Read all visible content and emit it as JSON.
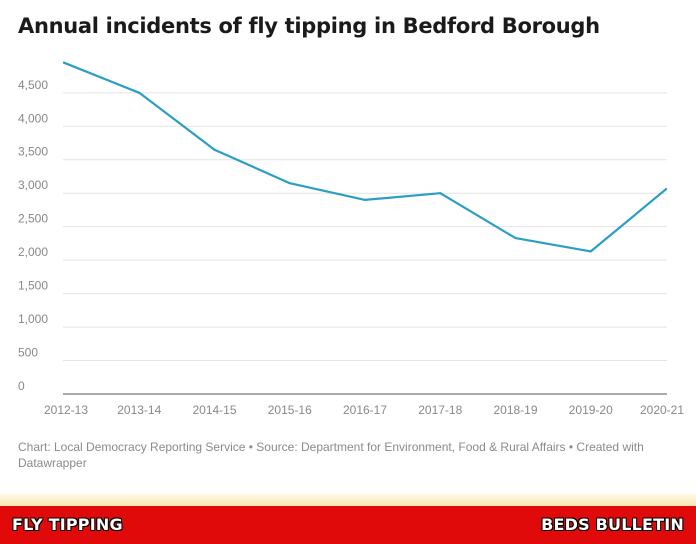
{
  "chart_data": {
    "type": "line",
    "title": "Annual incidents of fly tipping in Bedford Borough",
    "categories": [
      "2012-13",
      "2013-14",
      "2014-15",
      "2015-16",
      "2016-17",
      "2017-18",
      "2018-19",
      "2019-20",
      "2020-21"
    ],
    "series": [
      {
        "values": [
          4950,
          4500,
          3650,
          3150,
          2900,
          3000,
          2330,
          2130,
          3060
        ]
      }
    ],
    "yticks": [
      0,
      500,
      1000,
      1500,
      2000,
      2500,
      3000,
      3500,
      4000,
      4500
    ],
    "ytick_labels": [
      "0",
      "500",
      "1,000",
      "1,500",
      "2,000",
      "2,500",
      "3,000",
      "3,500",
      "4,000",
      "4,500"
    ],
    "ylim": [
      0,
      5000
    ],
    "grid": true,
    "line_color": "#2b9ec4"
  },
  "footnote": "Chart: Local Democracy Reporting Service • Source: Department for Environment, Food & Rural Affairs • Created with Datawrapper",
  "footer": {
    "left_label": "FLY TIPPING",
    "right_label": "BEDS BULLETIN",
    "background_color": "#e00a0a"
  }
}
